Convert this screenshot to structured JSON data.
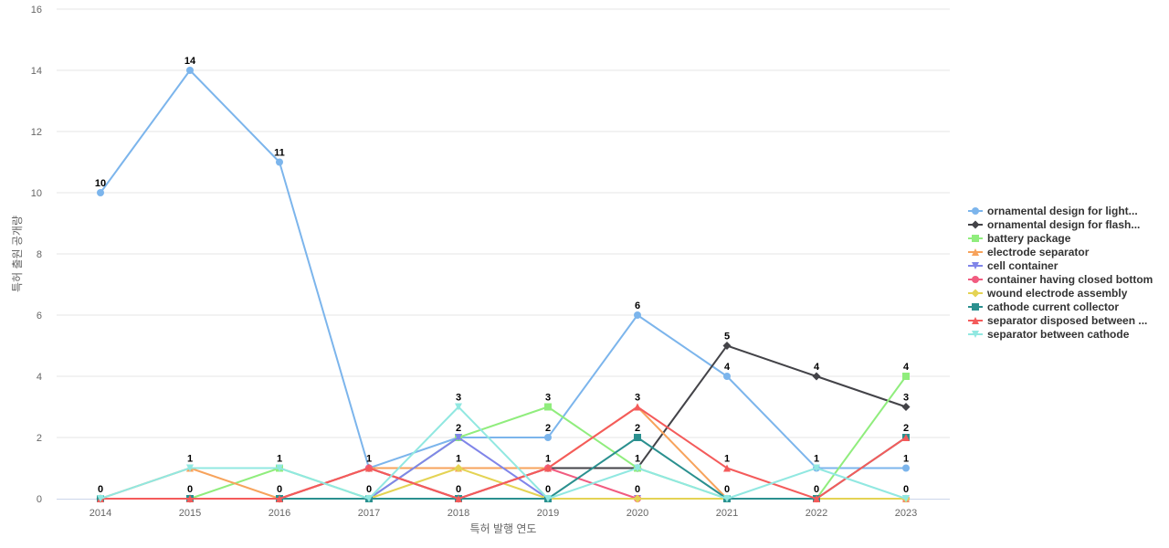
{
  "chart_data": {
    "type": "line",
    "xlabel": "특허 발행 연도",
    "ylabel": "특허 출원 공개량",
    "x": [
      "2014",
      "2015",
      "2016",
      "2017",
      "2018",
      "2019",
      "2020",
      "2021",
      "2022",
      "2023"
    ],
    "ylim": [
      0,
      16
    ],
    "yticks": [
      "0",
      "2",
      "4",
      "6",
      "8",
      "10",
      "12",
      "14",
      "16"
    ],
    "grid": true,
    "legend_position": "right",
    "series": [
      {
        "name": "ornamental design for light...",
        "color": "#7cb5ec",
        "marker": "circle",
        "values": [
          10,
          14,
          11,
          1,
          2,
          2,
          6,
          4,
          1,
          1
        ]
      },
      {
        "name": "ornamental design for flash...",
        "color": "#434348",
        "marker": "diamond",
        "values": [
          0,
          0,
          0,
          1,
          0,
          1,
          1,
          5,
          4,
          3
        ]
      },
      {
        "name": "battery package",
        "color": "#90ed7d",
        "marker": "square",
        "values": [
          0,
          0,
          1,
          0,
          2,
          3,
          1,
          0,
          0,
          4
        ]
      },
      {
        "name": "electrode separator",
        "color": "#f7a35c",
        "marker": "triangle",
        "values": [
          0,
          1,
          0,
          1,
          1,
          1,
          3,
          0,
          0,
          0
        ]
      },
      {
        "name": "cell container",
        "color": "#8085e9",
        "marker": "triangle-down",
        "values": [
          0,
          0,
          0,
          0,
          2,
          0,
          0,
          0,
          0,
          0
        ]
      },
      {
        "name": "container having closed bottom",
        "color": "#f15c80",
        "marker": "circle",
        "values": [
          0,
          0,
          0,
          1,
          0,
          1,
          0,
          0,
          0,
          0
        ]
      },
      {
        "name": "wound electrode assembly",
        "color": "#e4d354",
        "marker": "diamond",
        "values": [
          0,
          0,
          0,
          0,
          1,
          0,
          0,
          0,
          0,
          0
        ]
      },
      {
        "name": "cathode current collector",
        "color": "#2b908f",
        "marker": "square",
        "values": [
          0,
          0,
          0,
          0,
          0,
          0,
          2,
          0,
          0,
          2
        ]
      },
      {
        "name": "separator disposed between ...",
        "color": "#f45b5b",
        "marker": "triangle",
        "values": [
          0,
          0,
          0,
          1,
          0,
          1,
          3,
          1,
          0,
          2
        ]
      },
      {
        "name": "separator between cathode",
        "color": "#91e8e1",
        "marker": "triangle-down",
        "values": [
          0,
          1,
          1,
          0,
          3,
          0,
          1,
          0,
          1,
          0
        ]
      }
    ],
    "data_labels": [
      {
        "x": "2014",
        "text": "10",
        "series": 0
      },
      {
        "x": "2014",
        "text": "0",
        "series": 1
      },
      {
        "x": "2015",
        "text": "14",
        "series": 0
      },
      {
        "x": "2015",
        "text": "1",
        "series": 3
      },
      {
        "x": "2015",
        "text": "0",
        "series": 1
      },
      {
        "x": "2016",
        "text": "11",
        "series": 0
      },
      {
        "x": "2016",
        "text": "1",
        "series": 2
      },
      {
        "x": "2016",
        "text": "0",
        "series": 1
      },
      {
        "x": "2017",
        "text": "1",
        "series": 0
      },
      {
        "x": "2017",
        "text": "0",
        "series": 2
      },
      {
        "x": "2018",
        "text": "3",
        "series": 9
      },
      {
        "x": "2018",
        "text": "2",
        "series": 0
      },
      {
        "x": "2018",
        "text": "1",
        "series": 3
      },
      {
        "x": "2018",
        "text": "0",
        "series": 1
      },
      {
        "x": "2019",
        "text": "3",
        "series": 2
      },
      {
        "x": "2019",
        "text": "2",
        "series": 0
      },
      {
        "x": "2019",
        "text": "1",
        "series": 1
      },
      {
        "x": "2019",
        "text": "0",
        "series": 4
      },
      {
        "x": "2020",
        "text": "6",
        "series": 0
      },
      {
        "x": "2020",
        "text": "3",
        "series": 3
      },
      {
        "x": "2020",
        "text": "2",
        "series": 7
      },
      {
        "x": "2020",
        "text": "1",
        "series": 1
      },
      {
        "x": "2020",
        "text": "0",
        "series": 5
      },
      {
        "x": "2021",
        "text": "5",
        "series": 1
      },
      {
        "x": "2021",
        "text": "4",
        "series": 0
      },
      {
        "x": "2021",
        "text": "1",
        "series": 8
      },
      {
        "x": "2021",
        "text": "0",
        "series": 2
      },
      {
        "x": "2022",
        "text": "4",
        "series": 1
      },
      {
        "x": "2022",
        "text": "1",
        "series": 0
      },
      {
        "x": "2022",
        "text": "0",
        "series": 2
      },
      {
        "x": "2023",
        "text": "4",
        "series": 2
      },
      {
        "x": "2023",
        "text": "3",
        "series": 1
      },
      {
        "x": "2023",
        "text": "2",
        "series": 7
      },
      {
        "x": "2023",
        "text": "1",
        "series": 0
      },
      {
        "x": "2023",
        "text": "0",
        "series": 3
      }
    ]
  }
}
